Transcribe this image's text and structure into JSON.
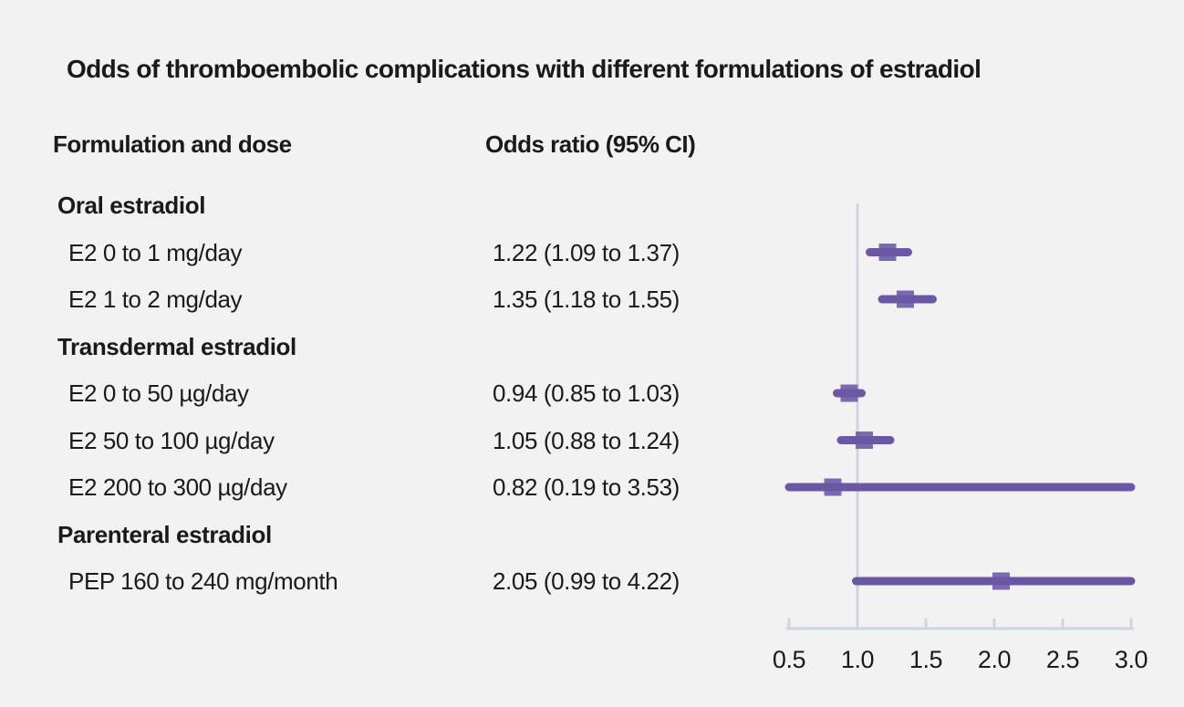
{
  "title": "Odds of thromboembolic complications with different formulations of estradiol",
  "columns": {
    "formulation": "Formulation and dose",
    "odds_ratio": "Odds ratio (95% CI)"
  },
  "chart_data": {
    "type": "forest",
    "title": "Odds of thromboembolic complications with different formulations of estradiol",
    "xlabel": "Odds ratio (95% CI)",
    "groups": [
      {
        "label": "Oral estradiol",
        "rows": [
          {
            "label": "E2 0 to 1 mg/day",
            "or_text": "1.22 (1.09 to 1.37)",
            "or": 1.22,
            "ci_low": 1.09,
            "ci_high": 1.37
          },
          {
            "label": "E2 1 to 2 mg/day",
            "or_text": "1.35 (1.18 to 1.55)",
            "or": 1.35,
            "ci_low": 1.18,
            "ci_high": 1.55
          }
        ]
      },
      {
        "label": "Transdermal estradiol",
        "rows": [
          {
            "label": "E2 0 to 50 µg/day",
            "or_text": "0.94 (0.85 to 1.03)",
            "or": 0.94,
            "ci_low": 0.85,
            "ci_high": 1.03
          },
          {
            "label": "E2 50 to 100 µg/day",
            "or_text": "1.05 (0.88 to 1.24)",
            "or": 1.05,
            "ci_low": 0.88,
            "ci_high": 1.24
          },
          {
            "label": "E2 200 to 300 µg/day",
            "or_text": "0.82 (0.19 to 3.53)",
            "or": 0.82,
            "ci_low": 0.19,
            "ci_high": 3.53
          }
        ]
      },
      {
        "label": "Parenteral estradiol",
        "rows": [
          {
            "label": "PEP 160 to 240 mg/month",
            "or_text": "2.05 (0.99 to 4.22)",
            "or": 2.05,
            "ci_low": 0.99,
            "ci_high": 4.22
          }
        ]
      }
    ],
    "axis": {
      "tick_labels": [
        "0.5",
        "1.0",
        "1.5",
        "2.0",
        "2.5",
        "3.0"
      ],
      "tick_values": [
        0.5,
        1.0,
        1.5,
        2.0,
        2.5,
        3.0
      ],
      "min": 0.5,
      "max": 3.0,
      "reference_value": 1.0,
      "grid": false
    },
    "legend": null,
    "colors": {
      "ci_line": "#6a58a5",
      "marker_fill": "#7c6ab1",
      "axis_line": "#cfd5de",
      "background": "#f2f2f2",
      "text": "#1a1a1a"
    }
  }
}
